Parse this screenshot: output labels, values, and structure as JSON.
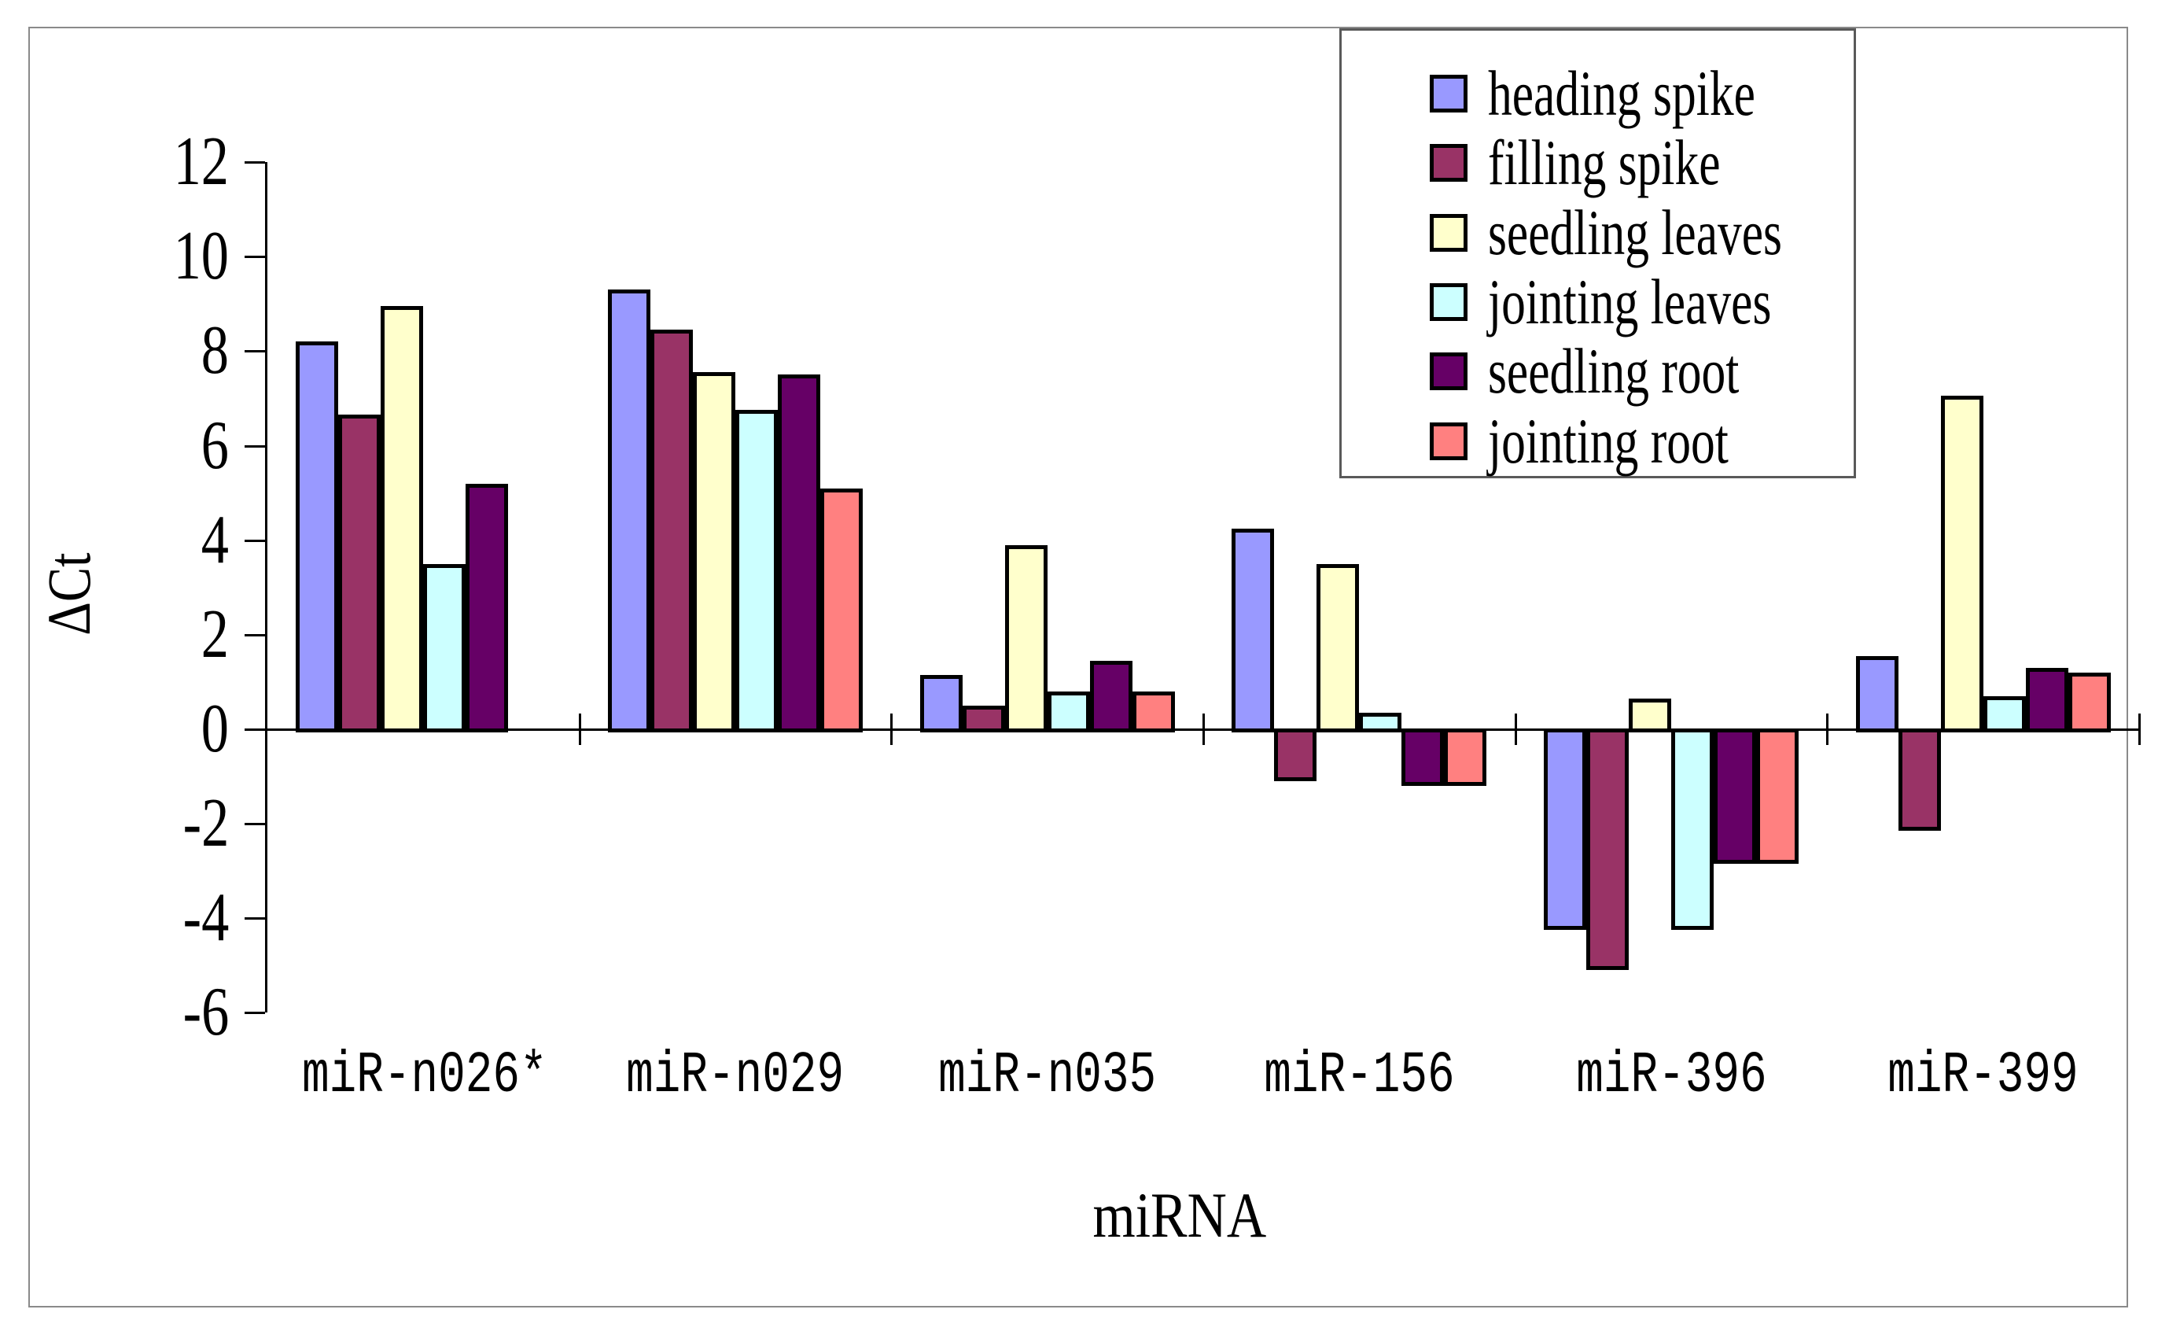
{
  "figure": {
    "background_color": "#ffffff",
    "frame_color": "#8a8a8a",
    "axis_color": "#000000"
  },
  "chart_data": {
    "type": "bar",
    "title": "",
    "xlabel": "miRNA",
    "ylabel": "ΔCt",
    "ylim": [
      -6,
      12
    ],
    "ytick_step": 2,
    "yticks": [
      12,
      10,
      8,
      6,
      4,
      2,
      0,
      -2,
      -4,
      -6
    ],
    "grid": false,
    "legend_position": "top-right",
    "bar_border_color": "#000000",
    "categories": [
      "miR-n026*",
      "miR-n029",
      "miR-n035",
      "miR-156",
      "miR-396",
      "miR-399"
    ],
    "series": [
      {
        "name": "heading spike",
        "color": "#9999FF",
        "values": [
          8.2,
          9.3,
          1.15,
          4.25,
          -4.2,
          1.55
        ]
      },
      {
        "name": "filling spike",
        "color": "#993366",
        "values": [
          6.65,
          8.45,
          0.5,
          -1.05,
          -5.05,
          -2.1
        ]
      },
      {
        "name": "seedling leaves",
        "color": "#FFFFCC",
        "values": [
          8.95,
          7.55,
          3.9,
          3.5,
          0.65,
          7.05
        ]
      },
      {
        "name": "jointing leaves",
        "color": "#CCFFFF",
        "values": [
          3.5,
          6.75,
          0.8,
          0.35,
          -4.2,
          0.7
        ]
      },
      {
        "name": "seedling root",
        "color": "#660066",
        "values": [
          5.2,
          7.5,
          1.45,
          -1.15,
          -2.8,
          1.3
        ]
      },
      {
        "name": "jointing root",
        "color": "#FF8080",
        "values": [
          null,
          5.1,
          0.8,
          -1.15,
          -2.8,
          1.2
        ]
      }
    ]
  }
}
